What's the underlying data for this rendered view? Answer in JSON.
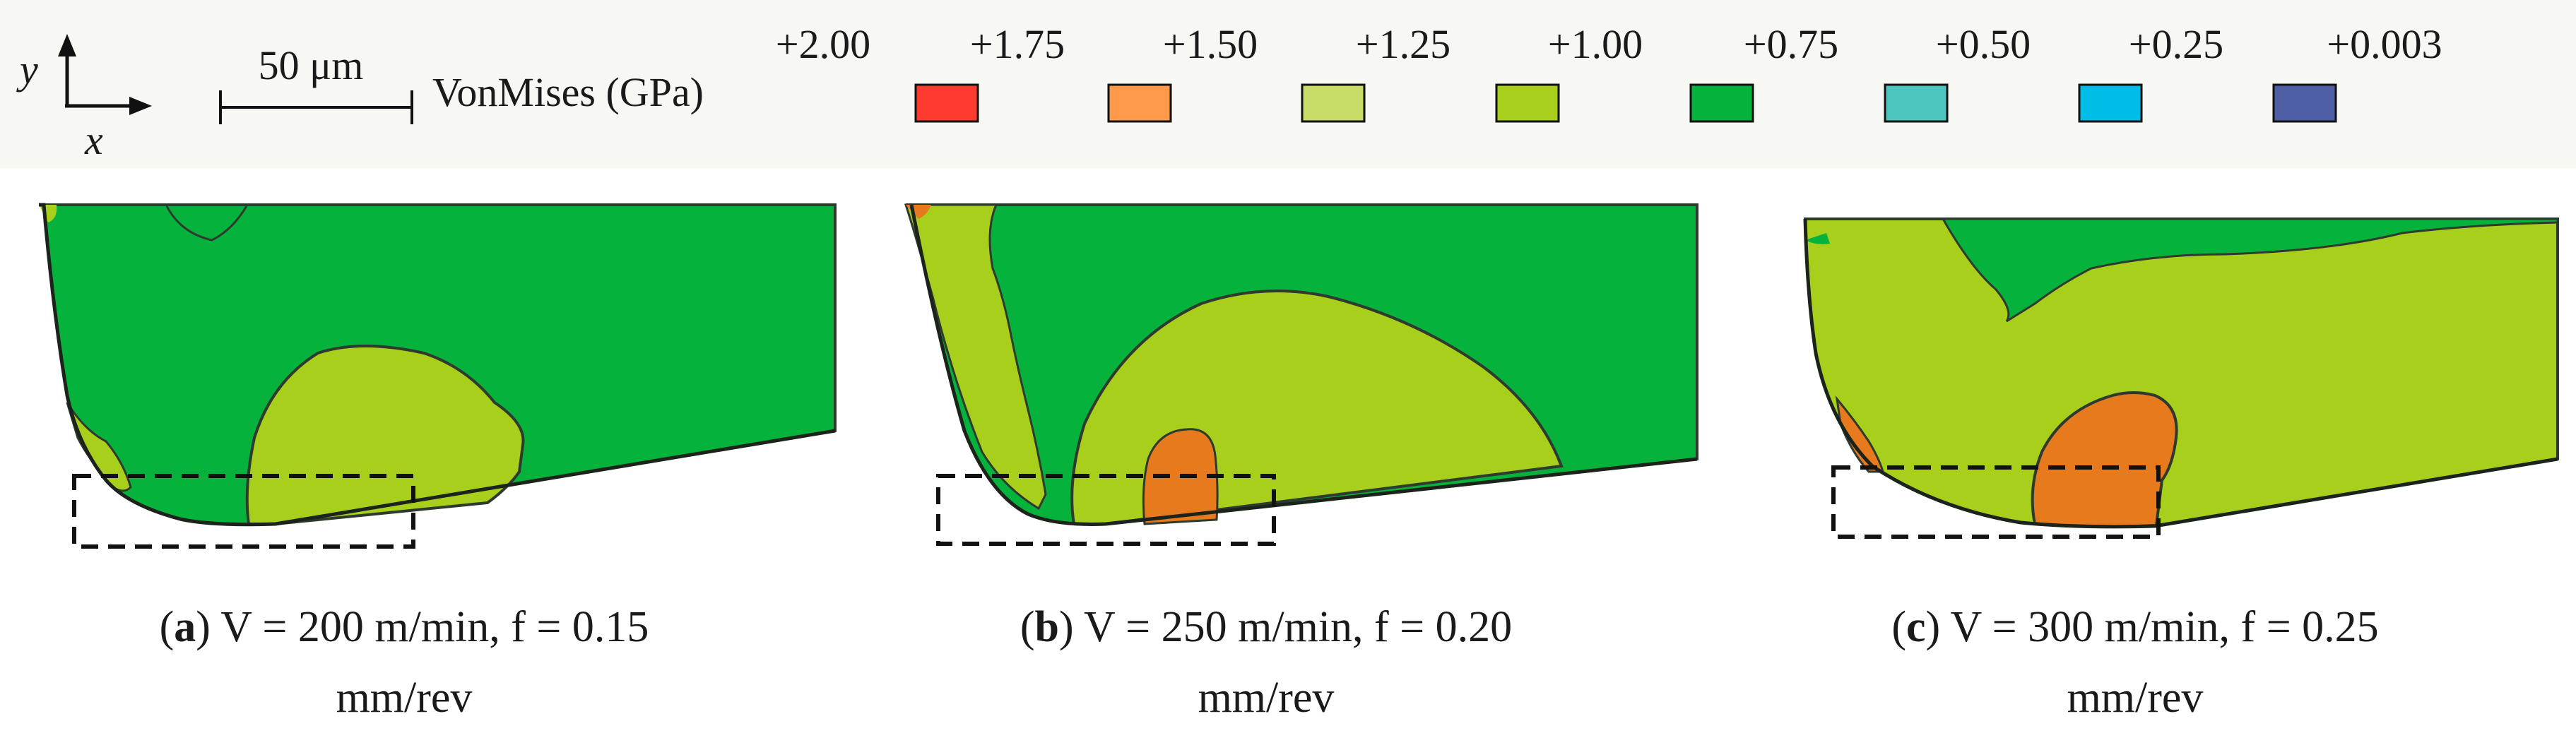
{
  "axes": {
    "y_label": "y",
    "x_label": "x"
  },
  "scale_bar": {
    "label": "50 μm"
  },
  "legend": {
    "title": "VonMises (GPa)",
    "levels": [
      {
        "label": "+2.00",
        "color": "#ff3b30"
      },
      {
        "label": "+1.75",
        "color": "#ff9a4a"
      },
      {
        "label": "+1.50",
        "color": "#c8dc68"
      },
      {
        "label": "+1.25",
        "color": "#a8cf1c"
      },
      {
        "label": "+1.00",
        "color": "#05b33c"
      },
      {
        "label": "+0.75",
        "color": "#4ec6c0"
      },
      {
        "label": "+0.50",
        "color": "#00bde8"
      },
      {
        "label": "+0.25",
        "color": "#4f5fa5"
      },
      {
        "label": "+0.003",
        "color": ""
      }
    ]
  },
  "panels": [
    {
      "letter": "a",
      "caption_line1": ") V = 200 m/min, f = 0.15",
      "caption_line2": "mm/rev"
    },
    {
      "letter": "b",
      "caption_line1": ") V = 250 m/min, f = 0.20",
      "caption_line2": "mm/rev"
    },
    {
      "letter": "c",
      "caption_line1": ") V = 300 m/min, f = 0.25",
      "caption_line2": "mm/rev"
    }
  ],
  "colors": {
    "green_region": "#05b33c",
    "yellow_region": "#a8cf1c",
    "orange_region": "#e87a1e",
    "outline": "#2f3a2f",
    "legend_band": "#f7f7f4"
  }
}
